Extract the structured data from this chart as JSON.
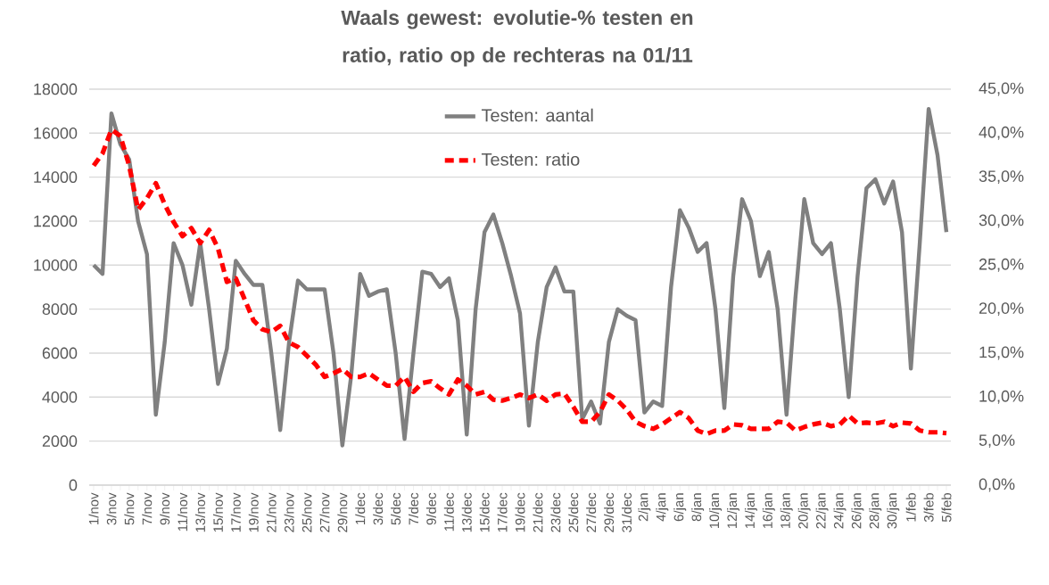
{
  "chart_data": {
    "type": "line",
    "title": "Waals gewest: evolutie-% testen en ratio, ratio op de rechteras na 01/11",
    "categories": [
      "1/nov",
      null,
      "3/nov",
      null,
      "5/nov",
      null,
      "7/nov",
      null,
      "9/nov",
      null,
      "11/nov",
      null,
      "13/nov",
      null,
      "15/nov",
      null,
      "17/nov",
      null,
      "19/nov",
      null,
      "21/nov",
      null,
      "23/nov",
      null,
      "25/nov",
      null,
      "27/nov",
      null,
      "29/nov",
      null,
      "1/dec",
      null,
      "3/dec",
      null,
      "5/dec",
      null,
      "7/dec",
      null,
      "9/dec",
      null,
      "11/dec",
      null,
      "13/dec",
      null,
      "15/dec",
      null,
      "17/dec",
      null,
      "19/dec",
      null,
      "21/dec",
      null,
      "23/dec",
      null,
      "25/dec",
      null,
      "27/dec",
      null,
      "29/dec",
      null,
      "31/dec",
      null,
      "2/jan",
      null,
      "4/jan",
      null,
      "6/jan",
      null,
      "8/jan",
      null,
      "10/jan",
      null,
      "12/jan",
      null,
      "14/jan",
      null,
      "16/jan",
      null,
      "18/jan",
      null,
      "20/jan",
      null,
      "22/jan",
      null,
      "24/jan",
      null,
      "26/jan",
      null,
      "28/jan",
      null,
      "30/jan",
      null,
      "1/feb",
      null,
      "3/feb",
      null,
      "5/feb"
    ],
    "series": [
      {
        "name": "Testen: aantal",
        "color": "#808080",
        "line_style": "solid",
        "values": [
          10000,
          9600,
          16900,
          15500,
          14800,
          12000,
          10500,
          3200,
          6500,
          11000,
          10000,
          8200,
          11000,
          8000,
          4600,
          6200,
          10200,
          9600,
          9100,
          9100,
          6000,
          2500,
          6500,
          9300,
          8900,
          8900,
          8900,
          6000,
          1800,
          5000,
          9600,
          8600,
          8800,
          8900,
          6000,
          2100,
          6000,
          9700,
          9600,
          9000,
          9400,
          7500,
          2300,
          8000,
          11500,
          12300,
          11000,
          9500,
          7800,
          2700,
          6500,
          9000,
          9900,
          8800,
          8800,
          3000,
          3800,
          2800,
          6500,
          8000,
          7700,
          7500,
          3300,
          3800,
          3600,
          9000,
          12500,
          11700,
          10600,
          11000,
          8000,
          3500,
          9500,
          13000,
          12000,
          9500,
          10600,
          8000,
          3200,
          8500,
          13000,
          11000,
          10500,
          11000,
          8000,
          4000,
          9500,
          13500,
          13900,
          12800,
          13800,
          11500,
          5300,
          11000,
          17100,
          15000,
          11500
        ]
      },
      {
        "name": "Testen: ratio",
        "color": "#ff0000",
        "line_style": "dashed",
        "axis": "y2",
        "values": [
          36.3,
          37.7,
          40.4,
          39.7,
          36.3,
          31.3,
          32.6,
          34.3,
          31.9,
          29.9,
          28.3,
          29.2,
          27.5,
          29.0,
          26.9,
          23.1,
          23.5,
          21.1,
          18.7,
          17.7,
          17.4,
          18.1,
          16.2,
          15.7,
          14.7,
          13.7,
          12.3,
          12.7,
          13.2,
          12.3,
          12.3,
          12.7,
          12.0,
          11.3,
          11.3,
          12.3,
          10.6,
          11.6,
          11.8,
          11.0,
          10.3,
          12.0,
          11.3,
          10.3,
          10.6,
          9.7,
          9.6,
          9.9,
          10.3,
          9.9,
          10.3,
          9.6,
          10.3,
          10.4,
          8.9,
          7.2,
          7.2,
          8.3,
          10.3,
          9.6,
          8.6,
          7.2,
          6.7,
          6.4,
          6.9,
          7.6,
          8.3,
          7.6,
          6.2,
          5.8,
          6.2,
          6.2,
          6.9,
          6.8,
          6.4,
          6.4,
          6.4,
          7.2,
          7.1,
          6.2,
          6.6,
          6.9,
          7.1,
          6.7,
          6.9,
          7.9,
          7.0,
          7.1,
          7.0,
          7.2,
          6.7,
          7.1,
          7.0,
          6.2,
          6.0,
          6.0,
          5.9
        ]
      }
    ],
    "ylim": [
      0,
      18000
    ],
    "yticks": [
      0,
      2000,
      4000,
      6000,
      8000,
      10000,
      12000,
      14000,
      16000,
      18000
    ],
    "y2lim": [
      0,
      45
    ],
    "y2ticks": [
      {
        "value": 0,
        "label": "0,0%"
      },
      {
        "value": 5,
        "label": "5,0%"
      },
      {
        "value": 10,
        "label": "10,0%"
      },
      {
        "value": 15,
        "label": "15,0%"
      },
      {
        "value": 20,
        "label": "20,0%"
      },
      {
        "value": 25,
        "label": "25,0%"
      },
      {
        "value": 30,
        "label": "30,0%"
      },
      {
        "value": 35,
        "label": "35,0%"
      },
      {
        "value": 40,
        "label": "40,0%"
      },
      {
        "value": 45,
        "label": "45,0%"
      }
    ],
    "grid": "y",
    "legend": "top",
    "marker": "none"
  }
}
